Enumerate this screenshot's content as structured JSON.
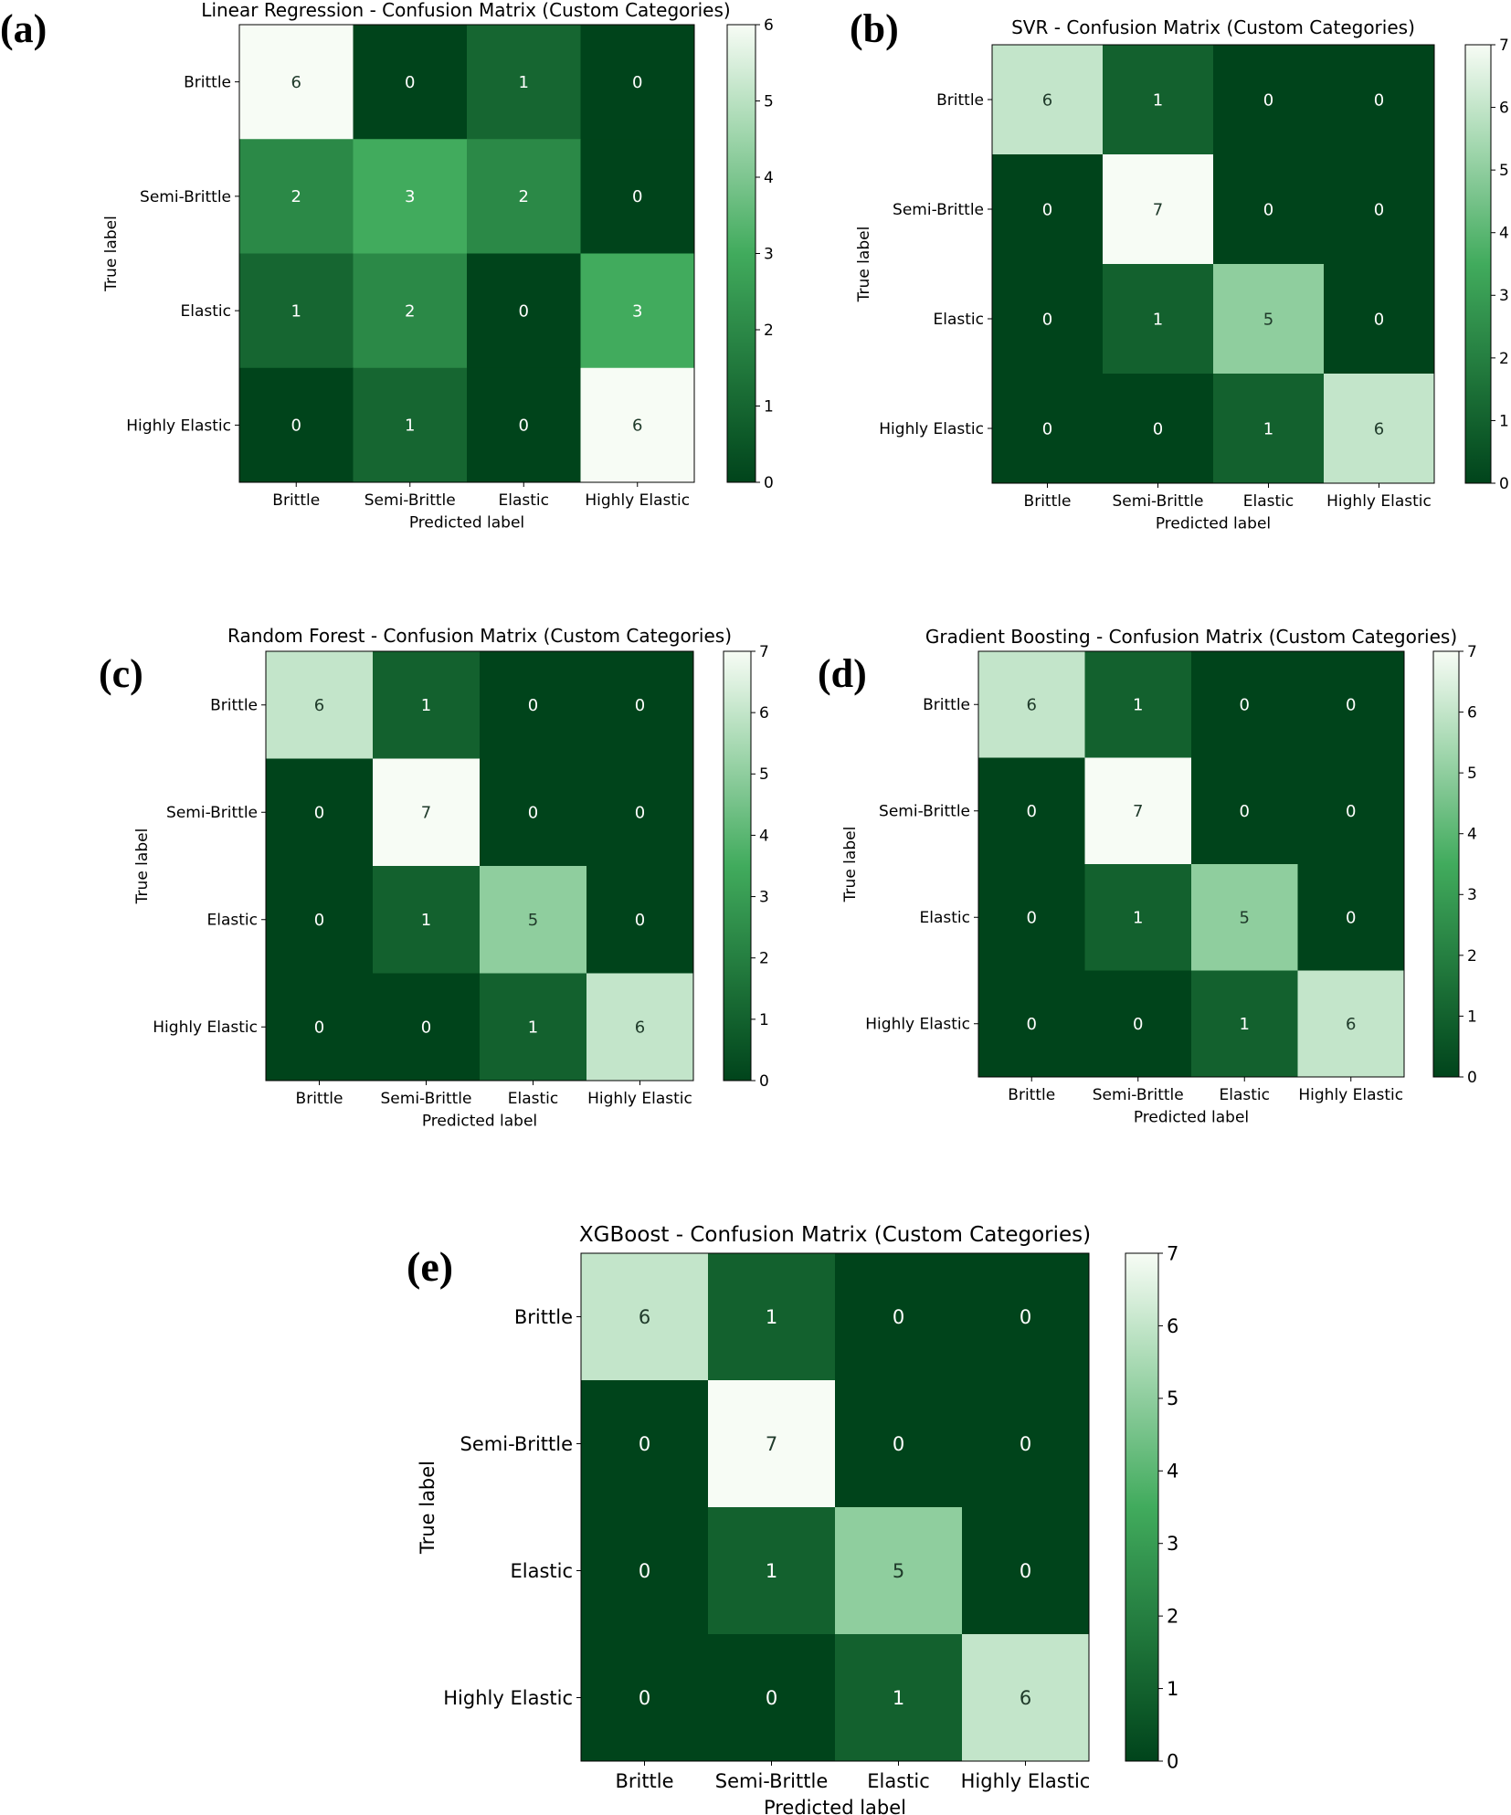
{
  "figure": {
    "description": "Five confusion matrices",
    "cmap": {
      "low": "#00441b",
      "mid": "#41ab5d",
      "high": "#f7fcf5"
    }
  },
  "chart_data": [
    {
      "type": "heatmap",
      "panel_label": "(a)",
      "title": "Linear Regression - Confusion Matrix (Custom Categories)",
      "xlabel": "Predicted label",
      "ylabel": "True label",
      "categories": [
        "Brittle",
        "Semi-Brittle",
        "Elastic",
        "Highly Elastic"
      ],
      "matrix": [
        [
          6,
          0,
          1,
          0
        ],
        [
          2,
          3,
          2,
          0
        ],
        [
          1,
          2,
          0,
          3
        ],
        [
          0,
          1,
          0,
          6
        ]
      ],
      "vmin": 0,
      "vmax": 6,
      "colorbar_ticks": [
        0,
        1,
        2,
        3,
        4,
        5,
        6
      ]
    },
    {
      "type": "heatmap",
      "panel_label": "(b)",
      "title": "SVR - Confusion Matrix (Custom Categories)",
      "xlabel": "Predicted label",
      "ylabel": "True label",
      "categories": [
        "Brittle",
        "Semi-Brittle",
        "Elastic",
        "Highly Elastic"
      ],
      "matrix": [
        [
          6,
          1,
          0,
          0
        ],
        [
          0,
          7,
          0,
          0
        ],
        [
          0,
          1,
          5,
          0
        ],
        [
          0,
          0,
          1,
          6
        ]
      ],
      "vmin": 0,
      "vmax": 7,
      "colorbar_ticks": [
        0,
        1,
        2,
        3,
        4,
        5,
        6,
        7
      ]
    },
    {
      "type": "heatmap",
      "panel_label": "(c)",
      "title": "Random Forest - Confusion Matrix (Custom Categories)",
      "xlabel": "Predicted label",
      "ylabel": "True label",
      "categories": [
        "Brittle",
        "Semi-Brittle",
        "Elastic",
        "Highly Elastic"
      ],
      "matrix": [
        [
          6,
          1,
          0,
          0
        ],
        [
          0,
          7,
          0,
          0
        ],
        [
          0,
          1,
          5,
          0
        ],
        [
          0,
          0,
          1,
          6
        ]
      ],
      "vmin": 0,
      "vmax": 7,
      "colorbar_ticks": [
        0,
        1,
        2,
        3,
        4,
        5,
        6,
        7
      ]
    },
    {
      "type": "heatmap",
      "panel_label": "(d)",
      "title": "Gradient Boosting - Confusion Matrix (Custom Categories)",
      "xlabel": "Predicted label",
      "ylabel": "True label",
      "categories": [
        "Brittle",
        "Semi-Brittle",
        "Elastic",
        "Highly Elastic"
      ],
      "matrix": [
        [
          6,
          1,
          0,
          0
        ],
        [
          0,
          7,
          0,
          0
        ],
        [
          0,
          1,
          5,
          0
        ],
        [
          0,
          0,
          1,
          6
        ]
      ],
      "vmin": 0,
      "vmax": 7,
      "colorbar_ticks": [
        0,
        1,
        2,
        3,
        4,
        5,
        6,
        7
      ]
    },
    {
      "type": "heatmap",
      "panel_label": "(e)",
      "title": "XGBoost - Confusion Matrix (Custom Categories)",
      "xlabel": "Predicted label",
      "ylabel": "True label",
      "categories": [
        "Brittle",
        "Semi-Brittle",
        "Elastic",
        "Highly Elastic"
      ],
      "matrix": [
        [
          6,
          1,
          0,
          0
        ],
        [
          0,
          7,
          0,
          0
        ],
        [
          0,
          1,
          5,
          0
        ],
        [
          0,
          0,
          1,
          6
        ]
      ],
      "vmin": 0,
      "vmax": 7,
      "colorbar_ticks": [
        0,
        1,
        2,
        3,
        4,
        5,
        6,
        7
      ]
    }
  ]
}
